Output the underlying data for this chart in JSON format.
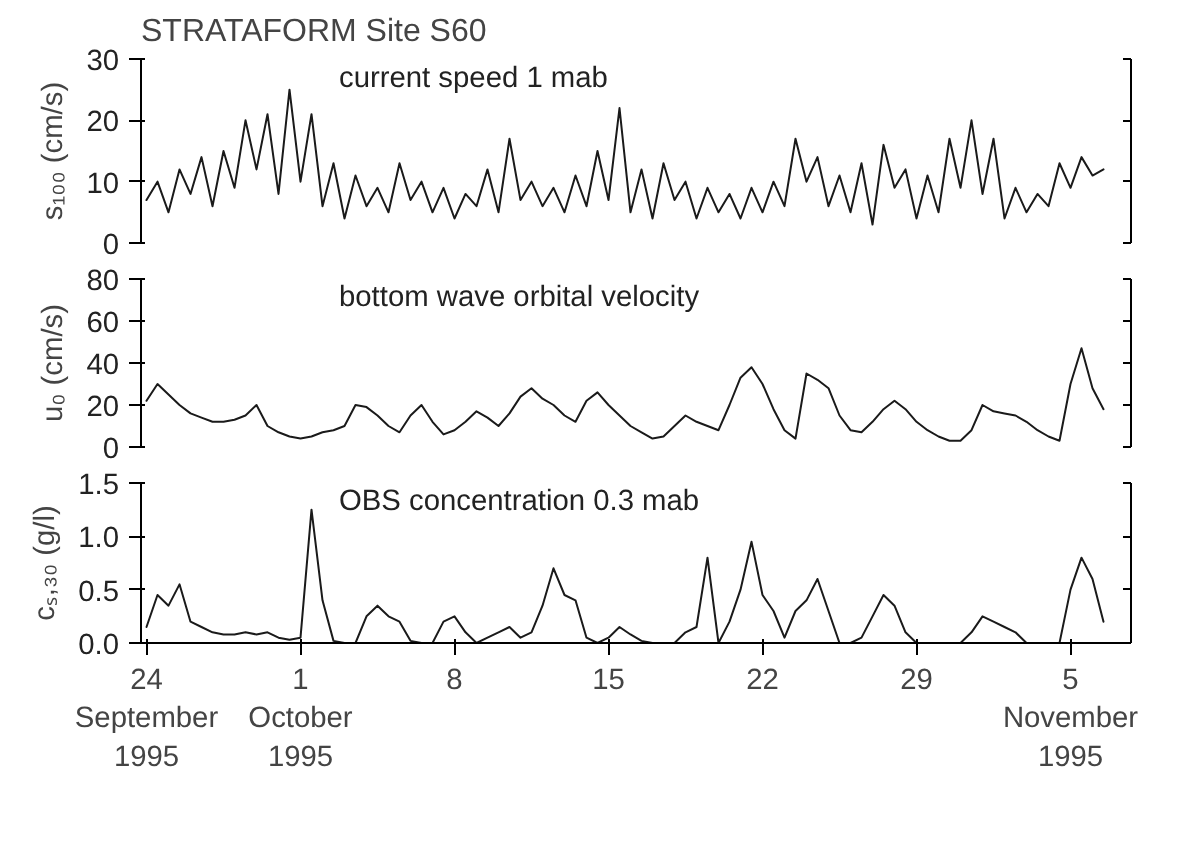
{
  "chart_data": [
    {
      "type": "line",
      "title": "STRATAFORM Site S60",
      "ylabel": "s₁₀₀ (cm/s)",
      "annotations": [
        "current speed 1 mab"
      ],
      "tick_labels": "y",
      "x": [
        "1995-09-24T00:00",
        "1995-09-24T12:00",
        "1995-09-25T00:00",
        "1995-09-25T12:00",
        "1995-09-26T00:00",
        "1995-09-26T12:00",
        "1995-09-27T00:00",
        "1995-09-27T12:00",
        "1995-09-28T00:00",
        "1995-09-28T12:00",
        "1995-09-29T00:00",
        "1995-09-29T12:00",
        "1995-09-30T00:00",
        "1995-09-30T12:00",
        "1995-10-01T00:00",
        "1995-10-01T12:00",
        "1995-10-02T00:00",
        "1995-10-02T12:00",
        "1995-10-03T00:00",
        "1995-10-03T12:00",
        "1995-10-04T00:00",
        "1995-10-04T12:00",
        "1995-10-05T00:00",
        "1995-10-05T12:00",
        "1995-10-06T00:00",
        "1995-10-06T12:00",
        "1995-10-07T00:00",
        "1995-10-07T12:00",
        "1995-10-08T00:00",
        "1995-10-08T12:00",
        "1995-10-09T00:00",
        "1995-10-09T12:00",
        "1995-10-10T00:00",
        "1995-10-10T12:00",
        "1995-10-11T00:00",
        "1995-10-11T12:00",
        "1995-10-12T00:00",
        "1995-10-12T12:00",
        "1995-10-13T00:00",
        "1995-10-13T12:00",
        "1995-10-14T00:00",
        "1995-10-14T12:00",
        "1995-10-15T00:00",
        "1995-10-15T12:00",
        "1995-10-16T00:00",
        "1995-10-16T12:00",
        "1995-10-17T00:00",
        "1995-10-17T12:00",
        "1995-10-18T00:00",
        "1995-10-18T12:00",
        "1995-10-19T00:00",
        "1995-10-19T12:00",
        "1995-10-20T00:00",
        "1995-10-20T12:00",
        "1995-10-21T00:00",
        "1995-10-21T12:00",
        "1995-10-22T00:00",
        "1995-10-22T12:00",
        "1995-10-23T00:00",
        "1995-10-23T12:00",
        "1995-10-24T00:00",
        "1995-10-24T12:00",
        "1995-10-25T00:00",
        "1995-10-25T12:00",
        "1995-10-26T00:00",
        "1995-10-26T12:00",
        "1995-10-27T00:00",
        "1995-10-27T12:00",
        "1995-10-28T00:00",
        "1995-10-28T12:00",
        "1995-10-29T00:00",
        "1995-10-29T12:00",
        "1995-10-30T00:00",
        "1995-10-30T12:00",
        "1995-10-31T00:00",
        "1995-10-31T12:00",
        "1995-11-01T00:00",
        "1995-11-01T12:00",
        "1995-11-02T00:00",
        "1995-11-02T12:00",
        "1995-11-03T00:00",
        "1995-11-03T12:00",
        "1995-11-04T00:00",
        "1995-11-04T12:00",
        "1995-11-05T00:00",
        "1995-11-05T12:00",
        "1995-11-06T00:00",
        "1995-11-06T12:00"
      ],
      "series": [
        {
          "color": "#1a1a1a",
          "values": [
            7,
            10,
            5,
            12,
            8,
            14,
            6,
            15,
            9,
            20,
            12,
            21,
            8,
            25,
            10,
            21,
            6,
            13,
            4,
            11,
            6,
            9,
            5,
            13,
            7,
            10,
            5,
            9,
            4,
            8,
            6,
            12,
            5,
            17,
            7,
            10,
            6,
            9,
            5,
            11,
            6,
            15,
            7,
            22,
            5,
            12,
            4,
            13,
            7,
            10,
            4,
            9,
            5,
            8,
            4,
            9,
            5,
            10,
            6,
            17,
            10,
            14,
            6,
            11,
            5,
            13,
            3,
            16,
            9,
            12,
            4,
            11,
            5,
            17,
            9,
            20,
            8,
            17,
            4,
            9,
            5,
            8,
            6,
            13,
            9,
            14,
            11,
            12
          ]
        }
      ],
      "xlim": [
        "1995-09-23T18:00",
        "1995-11-07T18:00"
      ],
      "ylim": [
        0,
        30
      ],
      "yticks": [
        0,
        10,
        20,
        30
      ]
    },
    {
      "type": "line",
      "ylabel": "u₀ (cm/s)",
      "annotations": [
        "bottom wave orbital velocity"
      ],
      "tick_labels": "y",
      "x": [
        "1995-09-24T00:00",
        "1995-09-24T12:00",
        "1995-09-25T00:00",
        "1995-09-25T12:00",
        "1995-09-26T00:00",
        "1995-09-26T12:00",
        "1995-09-27T00:00",
        "1995-09-27T12:00",
        "1995-09-28T00:00",
        "1995-09-28T12:00",
        "1995-09-29T00:00",
        "1995-09-29T12:00",
        "1995-09-30T00:00",
        "1995-09-30T12:00",
        "1995-10-01T00:00",
        "1995-10-01T12:00",
        "1995-10-02T00:00",
        "1995-10-02T12:00",
        "1995-10-03T00:00",
        "1995-10-03T12:00",
        "1995-10-04T00:00",
        "1995-10-04T12:00",
        "1995-10-05T00:00",
        "1995-10-05T12:00",
        "1995-10-06T00:00",
        "1995-10-06T12:00",
        "1995-10-07T00:00",
        "1995-10-07T12:00",
        "1995-10-08T00:00",
        "1995-10-08T12:00",
        "1995-10-09T00:00",
        "1995-10-09T12:00",
        "1995-10-10T00:00",
        "1995-10-10T12:00",
        "1995-10-11T00:00",
        "1995-10-11T12:00",
        "1995-10-12T00:00",
        "1995-10-12T12:00",
        "1995-10-13T00:00",
        "1995-10-13T12:00",
        "1995-10-14T00:00",
        "1995-10-14T12:00",
        "1995-10-15T00:00",
        "1995-10-15T12:00",
        "1995-10-16T00:00",
        "1995-10-16T12:00",
        "1995-10-17T00:00",
        "1995-10-17T12:00",
        "1995-10-18T00:00",
        "1995-10-18T12:00",
        "1995-10-19T00:00",
        "1995-10-19T12:00",
        "1995-10-20T00:00",
        "1995-10-20T12:00",
        "1995-10-21T00:00",
        "1995-10-21T12:00",
        "1995-10-22T00:00",
        "1995-10-22T12:00",
        "1995-10-23T00:00",
        "1995-10-23T12:00",
        "1995-10-24T00:00",
        "1995-10-24T12:00",
        "1995-10-25T00:00",
        "1995-10-25T12:00",
        "1995-10-26T00:00",
        "1995-10-26T12:00",
        "1995-10-27T00:00",
        "1995-10-27T12:00",
        "1995-10-28T00:00",
        "1995-10-28T12:00",
        "1995-10-29T00:00",
        "1995-10-29T12:00",
        "1995-10-30T00:00",
        "1995-10-30T12:00",
        "1995-10-31T00:00",
        "1995-10-31T12:00",
        "1995-11-01T00:00",
        "1995-11-01T12:00",
        "1995-11-02T00:00",
        "1995-11-02T12:00",
        "1995-11-03T00:00",
        "1995-11-03T12:00",
        "1995-11-04T00:00",
        "1995-11-04T12:00",
        "1995-11-05T00:00",
        "1995-11-05T12:00",
        "1995-11-06T00:00",
        "1995-11-06T12:00"
      ],
      "series": [
        {
          "color": "#1a1a1a",
          "values": [
            22,
            30,
            25,
            20,
            16,
            14,
            12,
            12,
            13,
            15,
            20,
            10,
            7,
            5,
            4,
            5,
            7,
            8,
            10,
            20,
            19,
            15,
            10,
            7,
            15,
            20,
            12,
            6,
            8,
            12,
            17,
            14,
            10,
            16,
            24,
            28,
            23,
            20,
            15,
            12,
            22,
            26,
            20,
            15,
            10,
            7,
            4,
            5,
            10,
            15,
            12,
            10,
            8,
            20,
            33,
            38,
            30,
            18,
            8,
            4,
            35,
            32,
            28,
            15,
            8,
            7,
            12,
            18,
            22,
            18,
            12,
            8,
            5,
            3,
            3,
            8,
            20,
            17,
            16,
            15,
            12,
            8,
            5,
            3,
            30,
            47,
            28,
            18
          ]
        }
      ],
      "xlim": [
        "1995-09-23T18:00",
        "1995-11-07T18:00"
      ],
      "ylim": [
        0,
        80
      ],
      "yticks": [
        0,
        20,
        40,
        60,
        80
      ]
    },
    {
      "type": "line",
      "ylabel": "cₛ,₃₀ (g/l)",
      "annotations": [
        "OBS concentration 0.3 mab"
      ],
      "x": [
        "1995-09-24T00:00",
        "1995-09-24T12:00",
        "1995-09-25T00:00",
        "1995-09-25T12:00",
        "1995-09-26T00:00",
        "1995-09-26T12:00",
        "1995-09-27T00:00",
        "1995-09-27T12:00",
        "1995-09-28T00:00",
        "1995-09-28T12:00",
        "1995-09-29T00:00",
        "1995-09-29T12:00",
        "1995-09-30T00:00",
        "1995-09-30T12:00",
        "1995-10-01T00:00",
        "1995-10-01T12:00",
        "1995-10-02T00:00",
        "1995-10-02T12:00",
        "1995-10-03T00:00",
        "1995-10-03T12:00",
        "1995-10-04T00:00",
        "1995-10-04T12:00",
        "1995-10-05T00:00",
        "1995-10-05T12:00",
        "1995-10-06T00:00",
        "1995-10-06T12:00",
        "1995-10-07T00:00",
        "1995-10-07T12:00",
        "1995-10-08T00:00",
        "1995-10-08T12:00",
        "1995-10-09T00:00",
        "1995-10-09T12:00",
        "1995-10-10T00:00",
        "1995-10-10T12:00",
        "1995-10-11T00:00",
        "1995-10-11T12:00",
        "1995-10-12T00:00",
        "1995-10-12T12:00",
        "1995-10-13T00:00",
        "1995-10-13T12:00",
        "1995-10-14T00:00",
        "1995-10-14T12:00",
        "1995-10-15T00:00",
        "1995-10-15T12:00",
        "1995-10-16T00:00",
        "1995-10-16T12:00",
        "1995-10-17T00:00",
        "1995-10-17T12:00",
        "1995-10-18T00:00",
        "1995-10-18T12:00",
        "1995-10-19T00:00",
        "1995-10-19T12:00",
        "1995-10-20T00:00",
        "1995-10-20T12:00",
        "1995-10-21T00:00",
        "1995-10-21T12:00",
        "1995-10-22T00:00",
        "1995-10-22T12:00",
        "1995-10-23T00:00",
        "1995-10-23T12:00",
        "1995-10-24T00:00",
        "1995-10-24T12:00",
        "1995-10-25T00:00",
        "1995-10-25T12:00",
        "1995-10-26T00:00",
        "1995-10-26T12:00",
        "1995-10-27T00:00",
        "1995-10-27T12:00",
        "1995-10-28T00:00",
        "1995-10-28T12:00",
        "1995-10-29T00:00",
        "1995-10-29T12:00",
        "1995-10-30T00:00",
        "1995-10-30T12:00",
        "1995-10-31T00:00",
        "1995-10-31T12:00",
        "1995-11-01T00:00",
        "1995-11-01T12:00",
        "1995-11-02T00:00",
        "1995-11-02T12:00",
        "1995-11-03T00:00",
        "1995-11-03T12:00",
        "1995-11-04T00:00",
        "1995-11-04T12:00",
        "1995-11-05T00:00",
        "1995-11-05T12:00",
        "1995-11-06T00:00",
        "1995-11-06T12:00"
      ],
      "series": [
        {
          "color": "#1a1a1a",
          "values": [
            0.15,
            0.45,
            0.35,
            0.55,
            0.2,
            0.15,
            0.1,
            0.08,
            0.08,
            0.1,
            0.08,
            0.1,
            0.05,
            0.03,
            0.05,
            1.25,
            0.4,
            0.02,
            0.0,
            0.0,
            0.25,
            0.35,
            0.25,
            0.2,
            0.02,
            0.0,
            0.0,
            0.2,
            0.25,
            0.1,
            0.0,
            0.05,
            0.1,
            0.15,
            0.05,
            0.1,
            0.35,
            0.7,
            0.45,
            0.4,
            0.05,
            0.0,
            0.05,
            0.15,
            0.08,
            0.02,
            0.0,
            0.0,
            0.0,
            0.1,
            0.15,
            0.8,
            0.0,
            0.2,
            0.5,
            0.95,
            0.45,
            0.3,
            0.05,
            0.3,
            0.4,
            0.6,
            0.3,
            0.0,
            0.0,
            0.05,
            0.25,
            0.45,
            0.35,
            0.1,
            0.0,
            0.0,
            0.0,
            0.0,
            0.0,
            0.1,
            0.25,
            0.2,
            0.15,
            0.1,
            0.0,
            0.0,
            0.0,
            0.0,
            0.5,
            0.8,
            0.6,
            0.2
          ]
        }
      ],
      "xlim": [
        "1995-09-23T18:00",
        "1995-11-07T18:00"
      ],
      "ylim": [
        0,
        1.5
      ],
      "yticks": [
        {
          "value": 0,
          "label": "0.0"
        },
        {
          "value": 0.5,
          "label": "0.5"
        },
        {
          "value": 1.0,
          "label": "1.0"
        },
        {
          "value": 1.5,
          "label": "1.5"
        }
      ],
      "xticks": [
        {
          "value": "1995-09-24",
          "label": "24\nSeptember\n1995"
        },
        {
          "value": "1995-10-01",
          "label": "1\nOctober\n1995"
        },
        {
          "value": "1995-10-08",
          "label": "8"
        },
        {
          "value": "1995-10-15",
          "label": "15"
        },
        {
          "value": "1995-10-22",
          "label": "22"
        },
        {
          "value": "1995-10-29",
          "label": "29"
        },
        {
          "value": "1995-11-05",
          "label": "5\nNovember\n1995"
        }
      ]
    }
  ]
}
